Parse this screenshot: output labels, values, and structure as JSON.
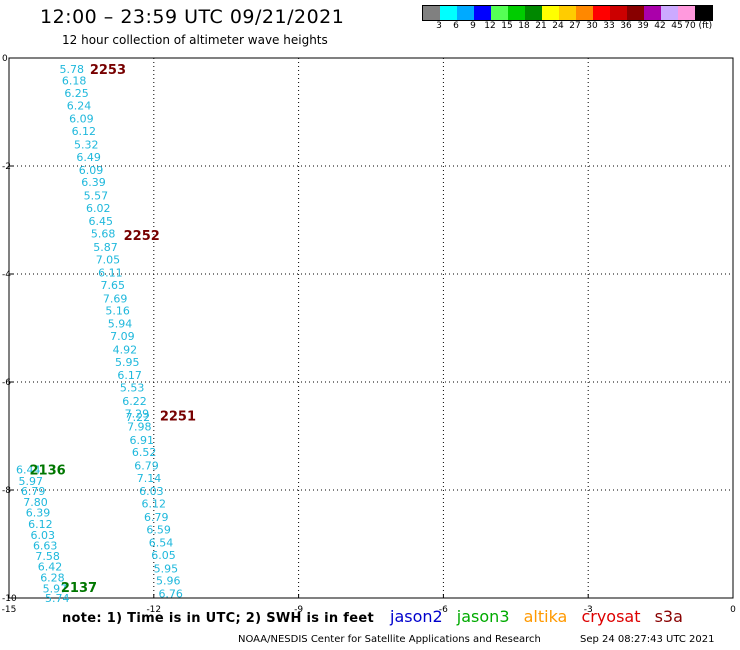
{
  "header": {
    "title": "12:00 – 23:59 UTC 09/21/2021",
    "subtitle": "12 hour collection of altimeter wave heights"
  },
  "colorbar": {
    "colors": [
      "#808080",
      "#00ffff",
      "#00aaff",
      "#0000ff",
      "#55ff55",
      "#00cc00",
      "#008800",
      "#ffff00",
      "#ffcc00",
      "#ff8800",
      "#ff0000",
      "#cc0000",
      "#880000",
      "#aa00aa",
      "#ccaaff",
      "#ff99dd",
      "#000000"
    ],
    "labels": [
      "3",
      "6",
      "9",
      "12",
      "15",
      "18",
      "21",
      "24",
      "27",
      "30",
      "33",
      "36",
      "39",
      "42",
      "45",
      "70 (ft)"
    ]
  },
  "chart_data": {
    "type": "scatter",
    "title": "",
    "xlabel": "",
    "ylabel": "",
    "xlim": [
      -15,
      0
    ],
    "ylim": [
      -10,
      0
    ],
    "x_ticks": [
      "-15",
      "-12",
      "-9",
      "-6",
      "-3",
      "0"
    ],
    "y_ticks": [
      "0",
      "-2",
      "-4",
      "-6",
      "-8",
      "-10"
    ],
    "grid": true,
    "series": [
      {
        "color": "#1fb8dc",
        "points": [
          {
            "x": -13.7,
            "y": -0.2,
            "v": "5.78"
          },
          {
            "x": -13.65,
            "y": -0.42,
            "v": "6.18"
          },
          {
            "x": -13.6,
            "y": -0.65,
            "v": "6.25"
          },
          {
            "x": -13.55,
            "y": -0.88,
            "v": "6.24"
          },
          {
            "x": -13.5,
            "y": -1.12,
            "v": "6.09"
          },
          {
            "x": -13.45,
            "y": -1.35,
            "v": "6.12"
          },
          {
            "x": -13.4,
            "y": -1.6,
            "v": "5.32"
          },
          {
            "x": -13.35,
            "y": -1.83,
            "v": "6.49"
          },
          {
            "x": -13.3,
            "y": -2.07,
            "v": "6.09"
          },
          {
            "x": -13.25,
            "y": -2.3,
            "v": "6.39"
          },
          {
            "x": -13.2,
            "y": -2.55,
            "v": "5.57"
          },
          {
            "x": -13.15,
            "y": -2.78,
            "v": "6.02"
          },
          {
            "x": -13.1,
            "y": -3.02,
            "v": "6.45"
          },
          {
            "x": -13.05,
            "y": -3.25,
            "v": "5.68"
          },
          {
            "x": -13.0,
            "y": -3.5,
            "v": "5.87"
          },
          {
            "x": -12.95,
            "y": -3.73,
            "v": "7.05"
          },
          {
            "x": -12.9,
            "y": -3.97,
            "v": "6.11"
          },
          {
            "x": -12.85,
            "y": -4.2,
            "v": "7.65"
          },
          {
            "x": -12.8,
            "y": -4.45,
            "v": "7.69"
          },
          {
            "x": -12.75,
            "y": -4.68,
            "v": "5.16"
          },
          {
            "x": -12.7,
            "y": -4.92,
            "v": "5.94"
          },
          {
            "x": -12.65,
            "y": -5.15,
            "v": "7.09"
          },
          {
            "x": -12.6,
            "y": -5.4,
            "v": "4.92"
          },
          {
            "x": -12.55,
            "y": -5.63,
            "v": "5.95"
          },
          {
            "x": -12.5,
            "y": -5.87,
            "v": "6.17"
          },
          {
            "x": -12.45,
            "y": -6.1,
            "v": "5.53"
          },
          {
            "x": -12.4,
            "y": -6.35,
            "v": "6.22"
          },
          {
            "x": -12.35,
            "y": -6.58,
            "v": "7.29"
          },
          {
            "x": -12.33,
            "y": -6.65,
            "v": "7.22"
          },
          {
            "x": -12.3,
            "y": -6.82,
            "v": "7.98"
          },
          {
            "x": -12.25,
            "y": -7.07,
            "v": "6.91"
          },
          {
            "x": -12.2,
            "y": -7.3,
            "v": "6.52"
          },
          {
            "x": -12.15,
            "y": -7.55,
            "v": "6.79"
          },
          {
            "x": -12.1,
            "y": -7.78,
            "v": "7.14"
          },
          {
            "x": -12.05,
            "y": -8.02,
            "v": "6.03"
          },
          {
            "x": -12.0,
            "y": -8.25,
            "v": "6.12"
          },
          {
            "x": -11.95,
            "y": -8.5,
            "v": "6.79"
          },
          {
            "x": -11.9,
            "y": -8.73,
            "v": "6.59"
          },
          {
            "x": -11.85,
            "y": -8.97,
            "v": "6.54"
          },
          {
            "x": -11.8,
            "y": -9.2,
            "v": "6.05"
          },
          {
            "x": -11.75,
            "y": -9.45,
            "v": "5.95"
          },
          {
            "x": -11.7,
            "y": -9.68,
            "v": "5.96"
          },
          {
            "x": -11.65,
            "y": -9.92,
            "v": "6.76"
          }
        ]
      },
      {
        "color": "#1fb8dc",
        "points": [
          {
            "x": -14.6,
            "y": -7.62,
            "v": "6.44"
          },
          {
            "x": -14.55,
            "y": -7.83,
            "v": "5.97"
          },
          {
            "x": -14.5,
            "y": -8.02,
            "v": "6.79"
          },
          {
            "x": -14.45,
            "y": -8.22,
            "v": "7.80"
          },
          {
            "x": -14.4,
            "y": -8.42,
            "v": "6.39"
          },
          {
            "x": -14.35,
            "y": -8.63,
            "v": "6.12"
          },
          {
            "x": -14.3,
            "y": -8.83,
            "v": "6.03"
          },
          {
            "x": -14.25,
            "y": -9.03,
            "v": "6.63"
          },
          {
            "x": -14.2,
            "y": -9.22,
            "v": "7.58"
          },
          {
            "x": -14.15,
            "y": -9.42,
            "v": "6.42"
          },
          {
            "x": -14.1,
            "y": -9.62,
            "v": "6.28"
          },
          {
            "x": -14.05,
            "y": -9.82,
            "v": "5.97"
          },
          {
            "x": -14.0,
            "y": -10.0,
            "v": "5.74"
          }
        ]
      }
    ],
    "annotations": [
      {
        "text": "2253",
        "x": -12.95,
        "y": -0.2,
        "color": "#770000"
      },
      {
        "text": "2252",
        "x": -12.25,
        "y": -3.28,
        "color": "#770000"
      },
      {
        "text": "2251",
        "x": -11.5,
        "y": -6.62,
        "color": "#770000"
      },
      {
        "text": "2136",
        "x": -14.2,
        "y": -7.62,
        "color": "#007700"
      },
      {
        "text": "2137",
        "x": -13.55,
        "y": -9.8,
        "color": "#007700"
      }
    ]
  },
  "footer": {
    "note": "note:  1) Time is in UTC; 2) SWH is in feet",
    "credit": "NOAA/NESDIS Center for Satellite Applications and Research",
    "timestamp": "Sep 24 08:27:43 UTC 2021"
  },
  "missions": [
    {
      "label": "jason2",
      "color": "#0000cc"
    },
    {
      "label": "jason3",
      "color": "#00aa00"
    },
    {
      "label": "altika",
      "color": "#ff9900"
    },
    {
      "label": "cryosat",
      "color": "#dd0000"
    },
    {
      "label": "s3a",
      "color": "#880000"
    }
  ]
}
